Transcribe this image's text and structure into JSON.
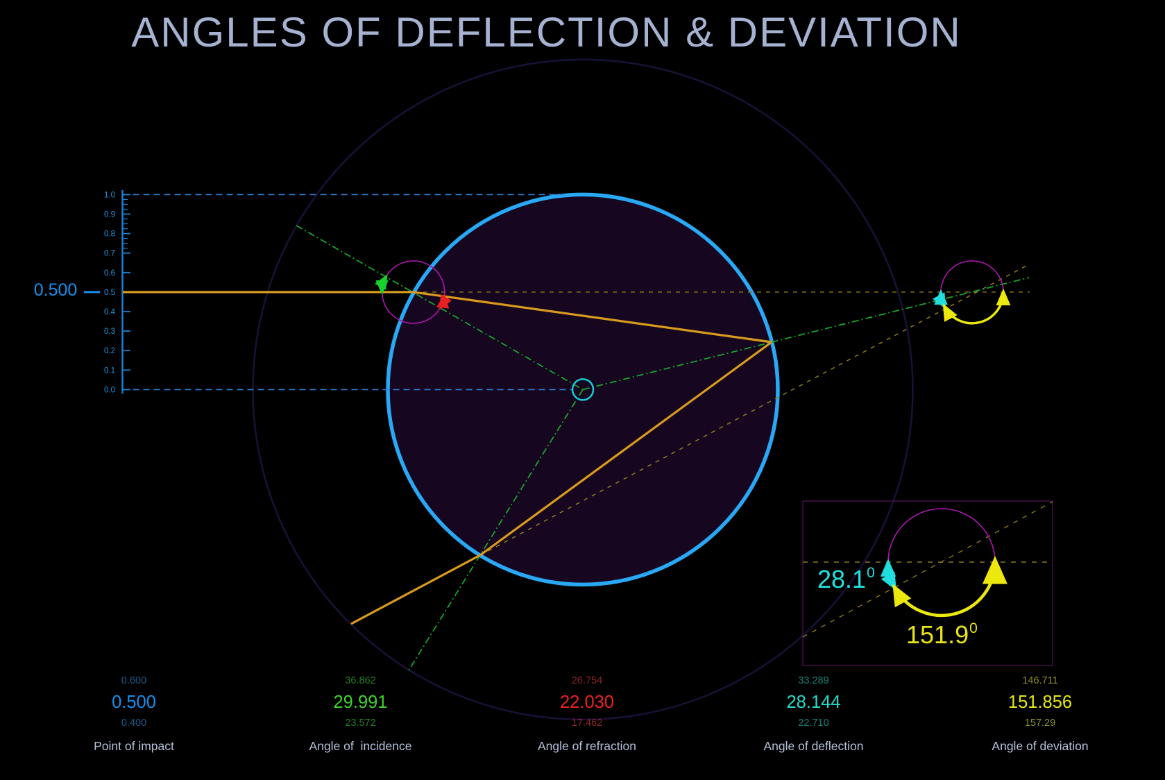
{
  "title": "ANGLES OF DEFLECTION & DEVIATION",
  "scale": {
    "tick_labels": [
      "1.0",
      "0.9",
      "0.8",
      "0.7",
      "0.6",
      "0.5",
      "0.4",
      "0.3",
      "0.2",
      "0.1",
      "0.0"
    ],
    "pointer_value": "0.500",
    "ruler_color": "#1b7fd0",
    "label_color": "#2196e3"
  },
  "columns": [
    {
      "label": "Point of impact",
      "value_above": "0.600",
      "value": "0.500",
      "value_below": "0.400",
      "bright": "#1590ee",
      "dim": "#1d5b8c"
    },
    {
      "label": "Angle of  incidence",
      "value_above": "36.862",
      "value": "29.991",
      "value_below": "23.572",
      "bright": "#3ed32a",
      "dim": "#257d25"
    },
    {
      "label": "Angle of refraction",
      "value_above": "26.754",
      "value": "22.030",
      "value_below": "17.462",
      "bright": "#f02020",
      "dim": "#8f2626"
    },
    {
      "label": "Angle of deflection",
      "value_above": "33.289",
      "value": "28.144",
      "value_below": "22.710",
      "bright": "#25ddcd",
      "dim": "#1a7f76"
    },
    {
      "label": "Angle of deviation",
      "value_above": "146.711",
      "value": "151.856",
      "value_below": "157.29",
      "bright": "#e6e616",
      "dim": "#8f8f28"
    }
  ],
  "inset": {
    "deflection_value": "28.1",
    "deflection_sup": "0",
    "deviation_value": "151.9",
    "deviation_sup": "0"
  },
  "colors": {
    "ray": "#d89b1e",
    "normal": "#17a52c",
    "ray_extension_dashed": "#8a6f1a",
    "droplet_stroke": "#29a8f5",
    "droplet_fill": "#170620",
    "measure_circle": "#b016b0",
    "deflection_arc": "#20dede",
    "deviation_arc": "#ece80e",
    "incidence_arc": "#17d12c",
    "refraction_arc": "#e82020",
    "outer_circle": "#1a1138",
    "inset_border": "#5c0f5c"
  }
}
